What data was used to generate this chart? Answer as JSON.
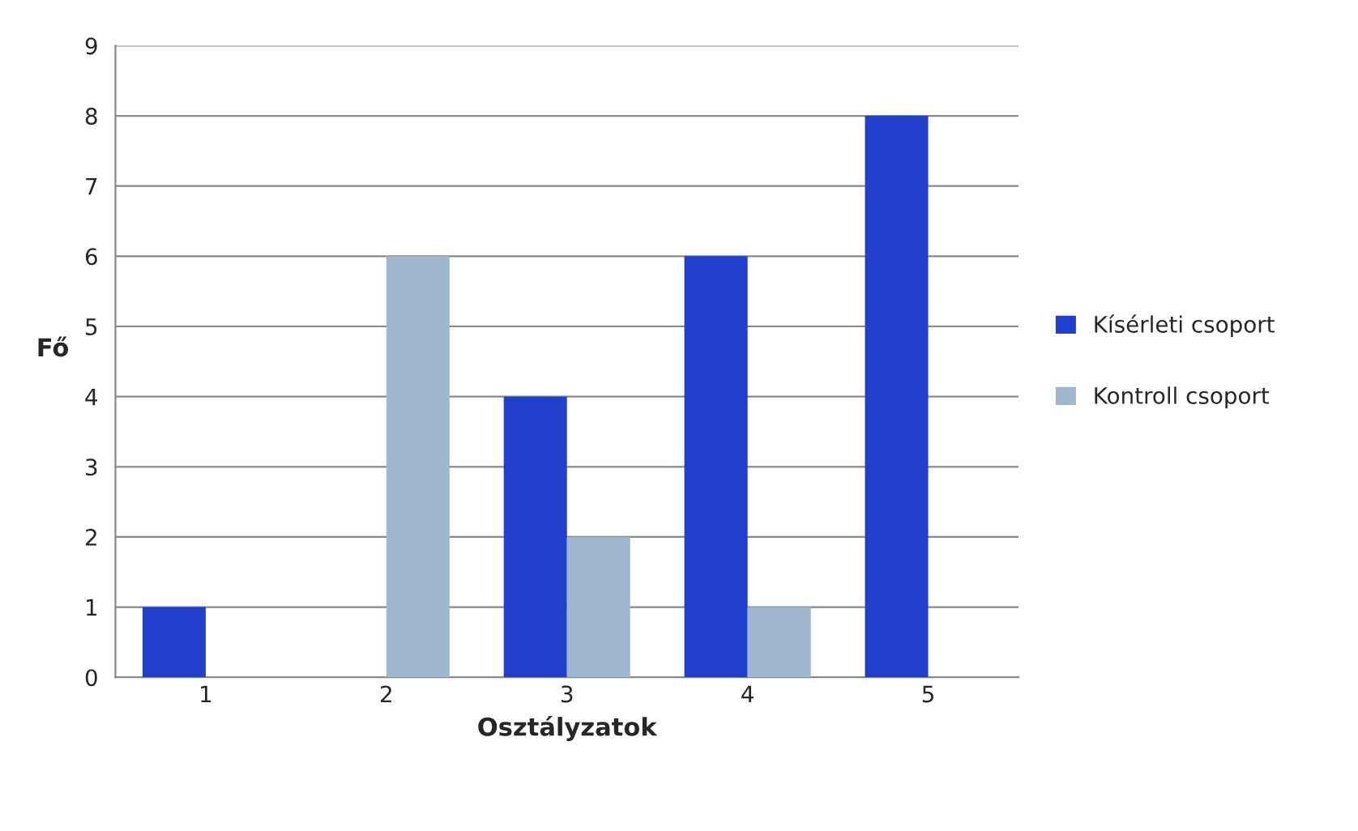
{
  "chart_data": {
    "type": "bar",
    "xlabel": "Osztályzatok",
    "ylabel": "Fő",
    "categories": [
      "1",
      "2",
      "3",
      "4",
      "5"
    ],
    "series": [
      {
        "name": "Kísérleti csoport",
        "color": "#1f3fcc",
        "values": [
          1,
          0,
          4,
          6,
          8
        ]
      },
      {
        "name": "Kontroll csoport",
        "color": "#9fb6cf",
        "values": [
          0,
          6,
          2,
          1,
          0
        ]
      }
    ],
    "ylim": [
      0,
      9
    ],
    "yticks": [
      0,
      1,
      2,
      3,
      4,
      5,
      6,
      7,
      8,
      9
    ],
    "grid": "y",
    "legend": "right"
  }
}
